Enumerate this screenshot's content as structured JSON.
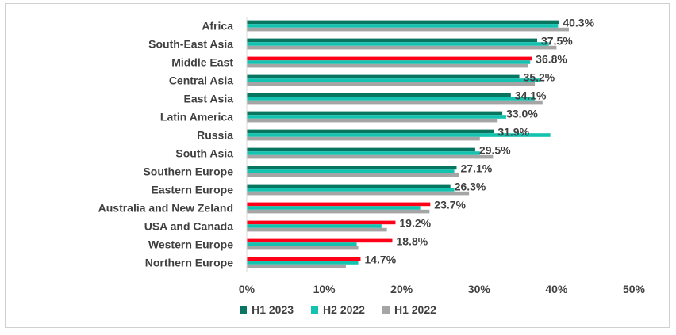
{
  "chart_data": {
    "type": "bar",
    "orientation": "horizontal",
    "categories": [
      "Africa",
      "South-East Asia",
      "Middle East",
      "Central Asia",
      "East Asia",
      "Latin America",
      "Russia",
      "South Asia",
      "Southern Europe",
      "Eastern Europe",
      "Australia and New Zeland",
      "USA and Canada",
      "Western Europe",
      "Northern Europe"
    ],
    "series": [
      {
        "name": "H1 2023",
        "color": "#087560",
        "values": [
          40.3,
          37.5,
          36.8,
          35.2,
          34.1,
          33.0,
          31.9,
          29.5,
          27.1,
          26.3,
          23.7,
          19.2,
          18.8,
          14.7
        ]
      },
      {
        "name": "H2 2022",
        "color": "#14c2b0",
        "values": [
          40.2,
          39.0,
          36.6,
          37.8,
          37.2,
          33.5,
          39.2,
          30.1,
          26.8,
          26.8,
          22.4,
          17.4,
          14.2,
          14.4
        ]
      },
      {
        "name": "H1 2022",
        "color": "#a5a5a5",
        "values": [
          41.6,
          40.0,
          36.3,
          37.2,
          38.2,
          32.4,
          30.1,
          31.8,
          27.4,
          28.7,
          23.6,
          18.1,
          14.4,
          12.8
        ]
      }
    ],
    "highlight_color": "#ff0018",
    "highlighted_categories": [
      "Middle East",
      "Australia and New Zeland",
      "USA and Canada",
      "Western Europe",
      "Northern Europe"
    ],
    "data_labels": [
      "40.3%",
      "37.5%",
      "36.8%",
      "35.2%",
      "34.1%",
      "33.0%",
      "31.9%",
      "29.5%",
      "27.1%",
      "26.3%",
      "23.7%",
      "19.2%",
      "18.8%",
      "14.7%"
    ],
    "xlim": [
      0,
      50
    ],
    "xticks": [
      "0%",
      "10%",
      "20%",
      "30%",
      "40%",
      "50%"
    ],
    "legend_position": "bottom",
    "grid": false
  }
}
